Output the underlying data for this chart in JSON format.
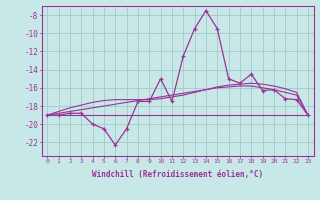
{
  "x": [
    0,
    1,
    2,
    3,
    4,
    5,
    6,
    7,
    8,
    9,
    10,
    11,
    12,
    13,
    14,
    15,
    16,
    17,
    18,
    19,
    20,
    21,
    22,
    23
  ],
  "y_main": [
    -19.0,
    -19.0,
    -18.8,
    -18.8,
    -20.0,
    -20.5,
    -22.3,
    -20.5,
    -17.5,
    -17.5,
    -15.0,
    -17.5,
    -12.5,
    -9.5,
    -7.5,
    -9.5,
    -15.0,
    -15.5,
    -14.5,
    -16.3,
    -16.2,
    -17.2,
    -17.3,
    -19.0
  ],
  "y_flat": [
    -19.0,
    -19.0,
    -19.0,
    -19.0,
    -19.0,
    -19.0,
    -19.0,
    -19.0,
    -19.0,
    -19.0,
    -19.0,
    -19.0,
    -19.0,
    -19.0,
    -19.0,
    -19.0,
    -19.0,
    -19.0,
    -19.0,
    -19.0,
    -19.0,
    -19.0,
    -19.0,
    -19.0
  ],
  "y_trend1": [
    -19.0,
    -18.8,
    -18.6,
    -18.4,
    -18.2,
    -18.0,
    -17.8,
    -17.6,
    -17.4,
    -17.2,
    -17.0,
    -16.8,
    -16.6,
    -16.4,
    -16.2,
    -16.0,
    -15.9,
    -15.8,
    -15.8,
    -16.0,
    -16.2,
    -16.5,
    -16.8,
    -19.0
  ],
  "y_trend2": [
    -19.0,
    -18.6,
    -18.2,
    -17.9,
    -17.6,
    -17.4,
    -17.3,
    -17.3,
    -17.3,
    -17.3,
    -17.2,
    -17.0,
    -16.8,
    -16.5,
    -16.2,
    -15.9,
    -15.7,
    -15.6,
    -15.5,
    -15.6,
    -15.8,
    -16.1,
    -16.5,
    -19.0
  ],
  "color": "#993399",
  "bg_color": "#c8e8e8",
  "grid_color": "#aacccc",
  "xlabel": "Windchill (Refroidissement éolien,°C)",
  "ylim": [
    -23.5,
    -7.0
  ],
  "xlim": [
    -0.5,
    23.5
  ],
  "yticks": [
    -8,
    -10,
    -12,
    -14,
    -16,
    -18,
    -20,
    -22
  ],
  "xticks": [
    0,
    1,
    2,
    3,
    4,
    5,
    6,
    7,
    8,
    9,
    10,
    11,
    12,
    13,
    14,
    15,
    16,
    17,
    18,
    19,
    20,
    21,
    22,
    23
  ]
}
